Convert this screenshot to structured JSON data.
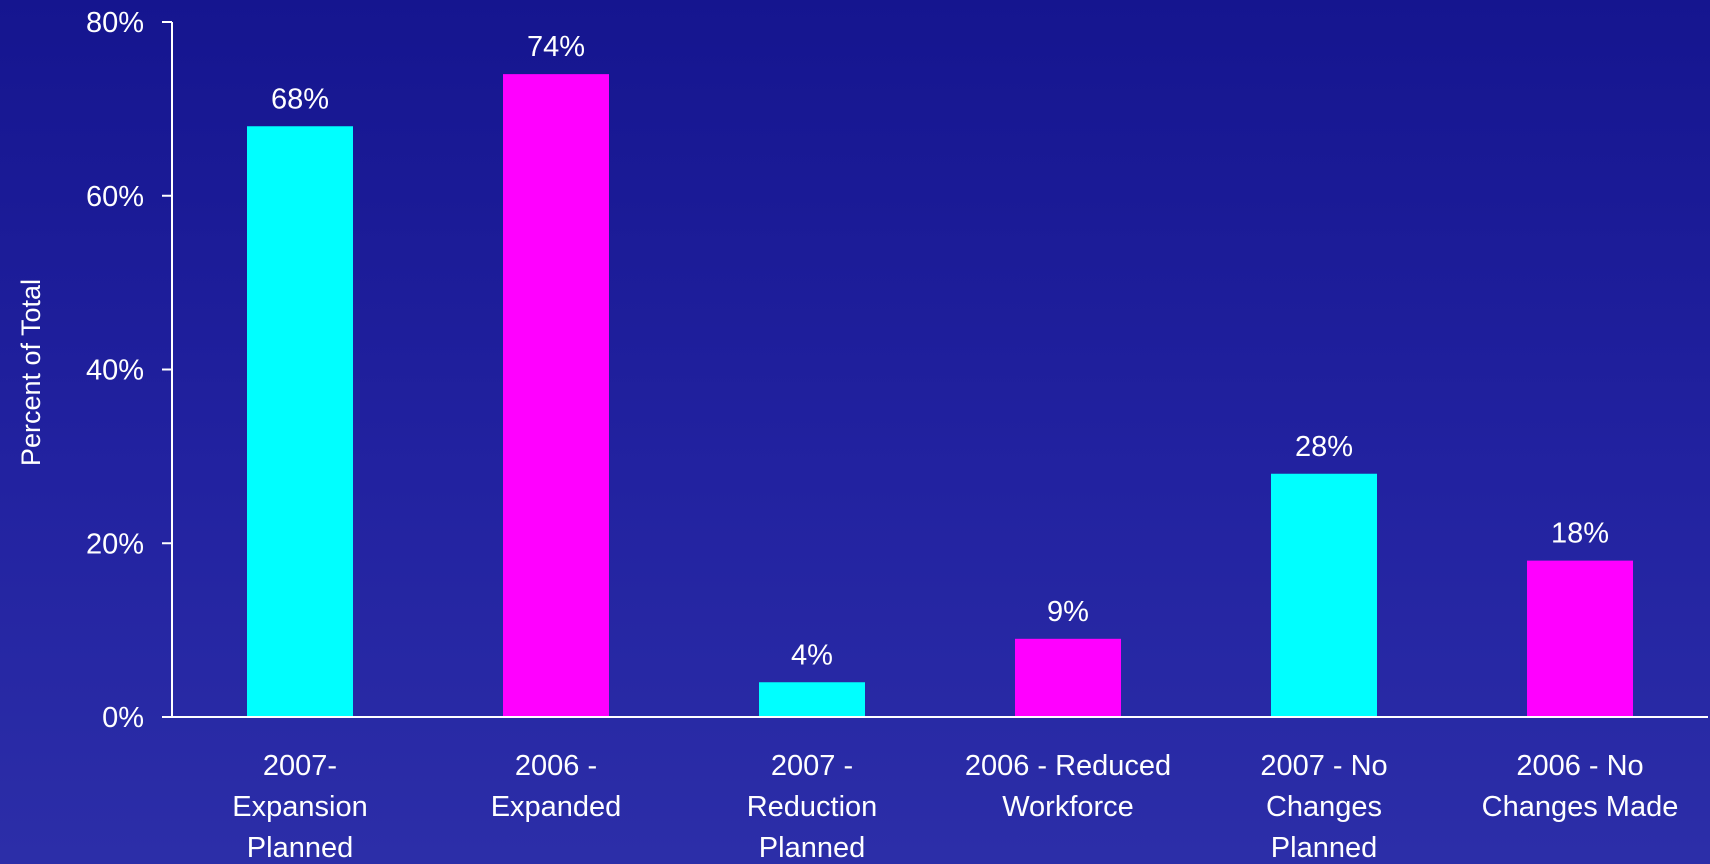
{
  "chart_data": {
    "type": "bar",
    "title": "",
    "xlabel": "",
    "ylabel": "Percent of Total",
    "ylim": [
      0,
      80
    ],
    "y_ticks": [
      0,
      20,
      40,
      60,
      80
    ],
    "y_tick_labels": [
      "0%",
      "20%",
      "40%",
      "60%",
      "80%"
    ],
    "grid": false,
    "legend": "none",
    "categories": [
      [
        "2007-",
        "Expansion",
        "Planned"
      ],
      [
        "2006 -",
        "Expanded"
      ],
      [
        "2007 -",
        "Reduction",
        "Planned"
      ],
      [
        "2006 - Reduced",
        "Workforce"
      ],
      [
        "2007 - No",
        "Changes",
        "Planned"
      ],
      [
        "2006 - No",
        "Changes Made"
      ]
    ],
    "values": [
      68,
      74,
      4,
      9,
      28,
      18
    ],
    "data_labels": [
      "68%",
      "74%",
      "4%",
      "9%",
      "28%",
      "18%"
    ],
    "bar_colors": [
      "#00ffff",
      "#ff00ff",
      "#00ffff",
      "#ff00ff",
      "#00ffff",
      "#ff00ff"
    ],
    "axis_color": "#ffffff",
    "background_color": "#1c1c98"
  }
}
